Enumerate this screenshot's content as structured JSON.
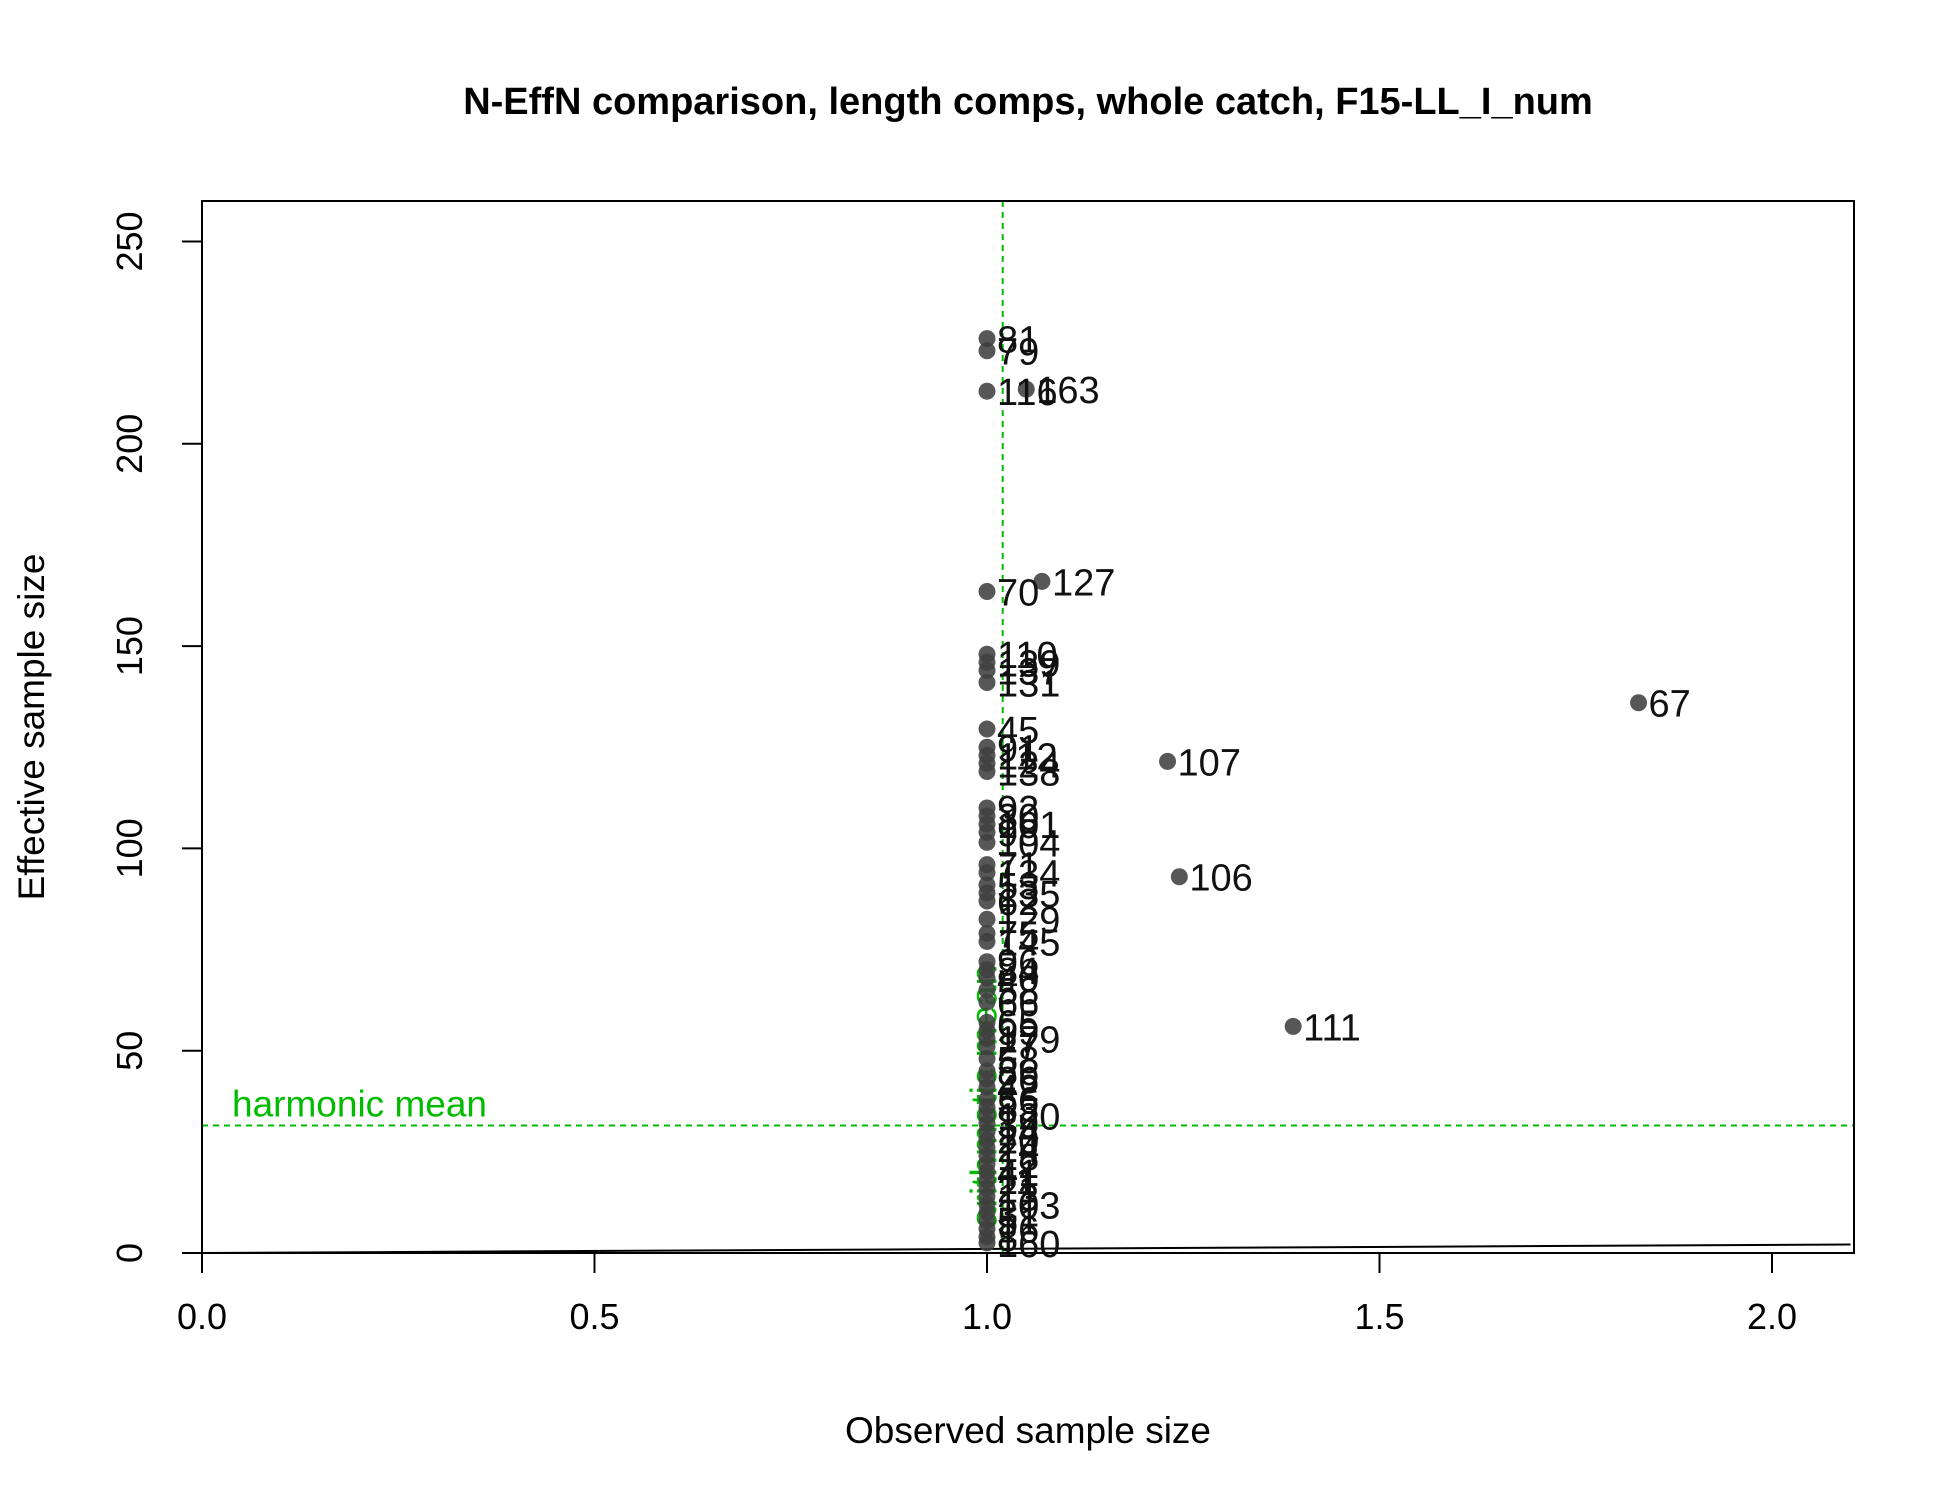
{
  "chart_data": {
    "type": "scatter",
    "title": "N-EffN comparison, length comps, whole catch, F15-LL_I_num",
    "xlabel": "Observed sample size",
    "ylabel": "Effective sample size",
    "xlim": [
      0,
      2.1
    ],
    "ylim": [
      0,
      260
    ],
    "x_ticks": [
      0.0,
      0.5,
      1.0,
      1.5,
      2.0
    ],
    "x_tick_labels": [
      "0.0",
      "0.5",
      "1.0",
      "1.5",
      "2.0"
    ],
    "y_ticks": [
      0,
      50,
      100,
      150,
      200,
      250
    ],
    "y_tick_labels": [
      "0",
      "50",
      "100",
      "150",
      "200",
      "250"
    ],
    "grid": false,
    "point_color": "#404040",
    "reference_color": "#00bb00",
    "reference_lines": [
      {
        "orientation": "horizontal",
        "value": 31.5,
        "label": "harmonic mean"
      },
      {
        "orientation": "vertical",
        "value": 1.02,
        "label": "arithmetic mean"
      }
    ],
    "one_to_one_line": {
      "color": "#000000"
    },
    "points": [
      {
        "x": 1.0,
        "y": 226,
        "label": "81"
      },
      {
        "x": 1.0,
        "y": 223,
        "label": "79"
      },
      {
        "x": 1.0,
        "y": 213,
        "label": "116"
      },
      {
        "x": 1.05,
        "y": 213.5,
        "label": "163"
      },
      {
        "x": 1.07,
        "y": 166,
        "label": "127"
      },
      {
        "x": 1.0,
        "y": 163.5,
        "label": "70"
      },
      {
        "x": 1.0,
        "y": 148,
        "label": "110"
      },
      {
        "x": 1.0,
        "y": 146,
        "label": "139"
      },
      {
        "x": 1.0,
        "y": 144,
        "label": "137"
      },
      {
        "x": 1.0,
        "y": 141,
        "label": "131"
      },
      {
        "x": 1.83,
        "y": 136,
        "label": "67"
      },
      {
        "x": 1.0,
        "y": 129.5,
        "label": "45"
      },
      {
        "x": 1.0,
        "y": 125,
        "label": "91"
      },
      {
        "x": 1.0,
        "y": 123,
        "label": "112"
      },
      {
        "x": 1.0,
        "y": 121,
        "label": "124"
      },
      {
        "x": 1.0,
        "y": 119,
        "label": "138"
      },
      {
        "x": 1.23,
        "y": 121.5,
        "label": "107"
      },
      {
        "x": 1.0,
        "y": 110,
        "label": "92"
      },
      {
        "x": 1.0,
        "y": 108,
        "label": "30"
      },
      {
        "x": 1.0,
        "y": 106,
        "label": "101"
      },
      {
        "x": 1.0,
        "y": 104,
        "label": "98"
      },
      {
        "x": 1.0,
        "y": 101.5,
        "label": "104"
      },
      {
        "x": 1.0,
        "y": 96,
        "label": "71"
      },
      {
        "x": 1.0,
        "y": 94,
        "label": "134"
      },
      {
        "x": 1.245,
        "y": 93,
        "label": "106"
      },
      {
        "x": 1.0,
        "y": 91,
        "label": "53"
      },
      {
        "x": 1.0,
        "y": 89,
        "label": "135"
      },
      {
        "x": 1.0,
        "y": 87,
        "label": "62"
      },
      {
        "x": 1.0,
        "y": 82.5,
        "label": "129"
      },
      {
        "x": 1.0,
        "y": 79,
        "label": "75"
      },
      {
        "x": 1.0,
        "y": 77,
        "label": "145"
      },
      {
        "x": 1.0,
        "y": 72,
        "label": "96"
      },
      {
        "x": 1.0,
        "y": 70,
        "label": "84"
      },
      {
        "x": 1.0,
        "y": 68,
        "label": "40"
      },
      {
        "x": 1.0,
        "y": 65,
        "label": "58"
      },
      {
        "x": 1.0,
        "y": 62,
        "label": "66"
      },
      {
        "x": 1.0,
        "y": 57,
        "label": "65"
      },
      {
        "x": 1.0,
        "y": 55,
        "label": "99"
      },
      {
        "x": 1.0,
        "y": 53,
        "label": "179"
      },
      {
        "x": 1.39,
        "y": 56,
        "label": "111"
      },
      {
        "x": 1.0,
        "y": 51,
        "label": "27"
      },
      {
        "x": 1.0,
        "y": 48,
        "label": "58"
      },
      {
        "x": 1.0,
        "y": 45,
        "label": "86"
      },
      {
        "x": 1.0,
        "y": 43,
        "label": "26"
      },
      {
        "x": 1.0,
        "y": 41,
        "label": "42"
      },
      {
        "x": 1.0,
        "y": 38,
        "label": "56"
      },
      {
        "x": 1.0,
        "y": 36,
        "label": "83"
      },
      {
        "x": 1.0,
        "y": 34,
        "label": "120"
      },
      {
        "x": 1.0,
        "y": 32,
        "label": "39"
      },
      {
        "x": 1.0,
        "y": 30,
        "label": "14"
      },
      {
        "x": 1.0,
        "y": 28,
        "label": "20"
      },
      {
        "x": 1.0,
        "y": 26,
        "label": "24"
      },
      {
        "x": 1.0,
        "y": 24,
        "label": "18"
      },
      {
        "x": 1.0,
        "y": 22,
        "label": "12"
      },
      {
        "x": 1.0,
        "y": 20,
        "label": "41"
      },
      {
        "x": 1.0,
        "y": 18,
        "label": "11"
      },
      {
        "x": 1.0,
        "y": 16,
        "label": "21"
      },
      {
        "x": 1.0,
        "y": 14,
        "label": "13"
      },
      {
        "x": 1.0,
        "y": 12,
        "label": "103"
      },
      {
        "x": 1.0,
        "y": 10,
        "label": "31"
      },
      {
        "x": 1.0,
        "y": 8,
        "label": "51"
      },
      {
        "x": 1.0,
        "y": 6,
        "label": "16"
      },
      {
        "x": 1.0,
        "y": 4,
        "label": "8"
      },
      {
        "x": 1.0,
        "y": 2.5,
        "label": "160"
      }
    ]
  }
}
